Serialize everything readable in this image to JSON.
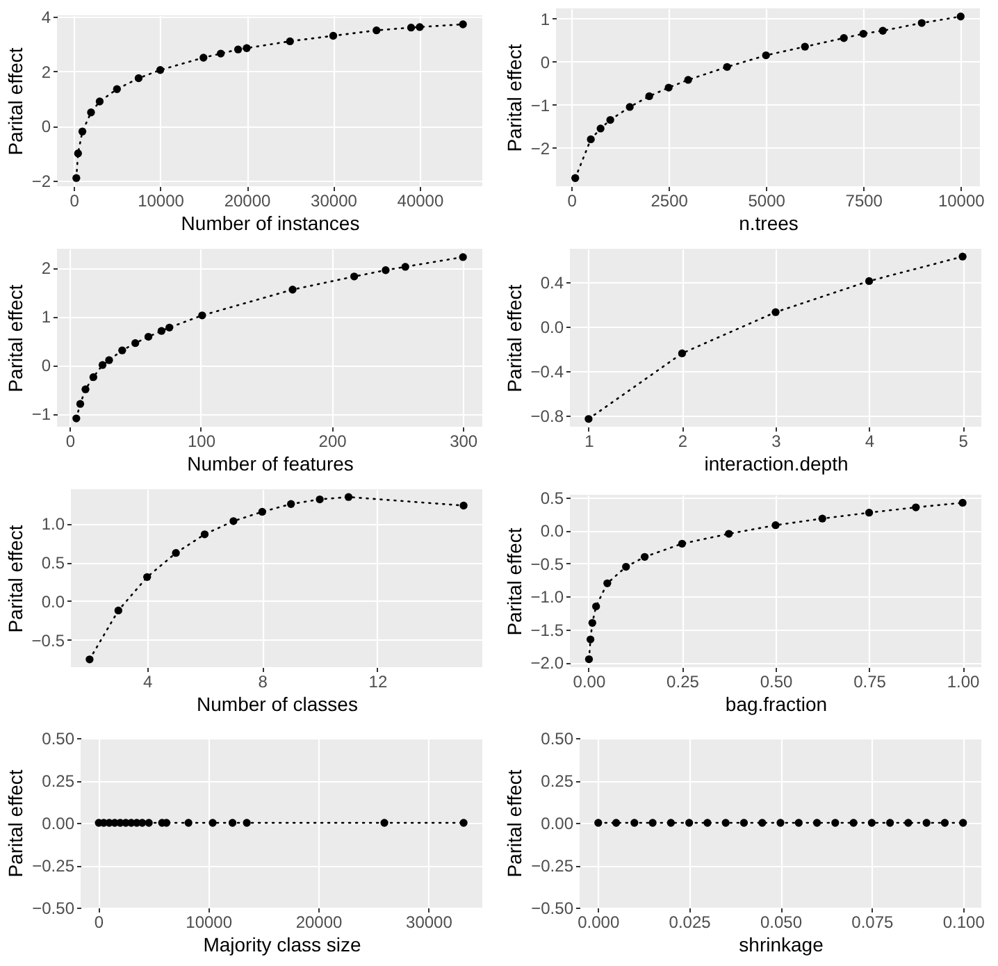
{
  "chart_data": [
    {
      "type": "line",
      "xlabel": "Number of instances",
      "ylabel": "Parital effect",
      "color": "#000000",
      "marker": "circle",
      "line_style": "dotted",
      "grid": true,
      "x": [
        300,
        500,
        1000,
        2000,
        3000,
        5000,
        7500,
        10000,
        15000,
        17000,
        19000,
        20000,
        25000,
        30000,
        35000,
        39000,
        40000,
        45000
      ],
      "values": [
        -1.9,
        -1,
        -0.2,
        0.5,
        0.9,
        1.35,
        1.75,
        2.05,
        2.5,
        2.65,
        2.8,
        2.85,
        3.1,
        3.3,
        3.5,
        3.6,
        3.62,
        3.72
      ],
      "xlim": [
        -1935,
        47235
      ],
      "ylim": [
        -2.2,
        4.05
      ],
      "xticks": [
        0,
        10000,
        20000,
        30000,
        40000
      ],
      "yticks": [
        {
          "value": -2,
          "label": "−2"
        },
        0,
        2,
        4
      ]
    },
    {
      "type": "line",
      "xlabel": "n.trees",
      "ylabel": "Parital effect",
      "color": "#000000",
      "marker": "circle",
      "line_style": "dotted",
      "grid": true,
      "x": [
        100,
        500,
        750,
        1000,
        1500,
        2000,
        2500,
        3000,
        4000,
        5000,
        6000,
        7000,
        7500,
        8000,
        9000,
        10000
      ],
      "values": [
        -2.7,
        -1.8,
        -1.55,
        -1.35,
        -1.05,
        -0.8,
        -0.6,
        -0.42,
        -0.12,
        0.15,
        0.35,
        0.55,
        0.65,
        0.72,
        0.9,
        1.05
      ],
      "xlim": [
        -395,
        10495
      ],
      "ylim": [
        -2.89,
        1.24
      ],
      "xticks": [
        0,
        2500,
        5000,
        7500,
        10000
      ],
      "yticks": [
        {
          "value": -2,
          "label": "−2"
        },
        {
          "value": -1,
          "label": "−1"
        },
        0,
        1
      ]
    },
    {
      "type": "line",
      "xlabel": "Number of features",
      "ylabel": "Parital effect",
      "color": "#000000",
      "marker": "circle",
      "line_style": "dotted",
      "grid": true,
      "x": [
        5,
        8,
        12,
        18,
        25,
        30,
        40,
        50,
        60,
        70,
        76,
        101,
        170,
        217,
        241,
        256,
        300
      ],
      "values": [
        -1.1,
        -0.8,
        -0.5,
        -0.25,
        0,
        0.1,
        0.3,
        0.45,
        0.58,
        0.7,
        0.77,
        1.02,
        1.55,
        1.82,
        1.95,
        2.02,
        2.22
      ],
      "xlim": [
        -9.75,
        314.75
      ],
      "ylim": [
        -1.27,
        2.39
      ],
      "xticks": [
        0,
        100,
        200,
        300
      ],
      "yticks": [
        {
          "value": -1,
          "label": "−1"
        },
        0,
        1,
        2
      ]
    },
    {
      "type": "line",
      "xlabel": "interaction.depth",
      "ylabel": "Parital effect",
      "color": "#000000",
      "marker": "circle",
      "line_style": "dotted",
      "grid": true,
      "x": [
        1,
        2,
        3,
        4,
        5
      ],
      "values": [
        -0.83,
        -0.24,
        0.13,
        0.41,
        0.63
      ],
      "xlim": [
        0.8,
        5.2
      ],
      "ylim": [
        -0.9,
        0.7
      ],
      "xticks": [
        1,
        2,
        3,
        4,
        5
      ],
      "yticks": [
        {
          "value": -0.8,
          "label": "−0.8"
        },
        {
          "value": -0.4,
          "label": "−0.4"
        },
        {
          "value": 0,
          "label": "0.0"
        },
        0.4
      ]
    },
    {
      "type": "line",
      "xlabel": "Number of classes",
      "ylabel": "Parital effect",
      "color": "#000000",
      "marker": "circle",
      "line_style": "dotted",
      "grid": true,
      "x": [
        2,
        3,
        4,
        5,
        6,
        7,
        8,
        9,
        10,
        11,
        15
      ],
      "values": [
        -0.75,
        -0.12,
        0.31,
        0.62,
        0.86,
        1.03,
        1.15,
        1.25,
        1.31,
        1.34,
        1.23
      ],
      "xlim": [
        1.35,
        15.65
      ],
      "ylim": [
        -0.85,
        1.44
      ],
      "xticks": [
        4,
        8,
        12
      ],
      "yticks": [
        {
          "value": -0.5,
          "label": "−0.5"
        },
        {
          "value": 0,
          "label": "0.0"
        },
        0.5,
        {
          "value": 1,
          "label": "1.0"
        }
      ]
    },
    {
      "type": "line",
      "xlabel": "bag.fraction",
      "ylabel": "Parital effect",
      "color": "#000000",
      "marker": "circle",
      "line_style": "dotted",
      "grid": true,
      "x": [
        0.001,
        0.005,
        0.01,
        0.02,
        0.05,
        0.1,
        0.15,
        0.25,
        0.375,
        0.5,
        0.625,
        0.75,
        0.875,
        1
      ],
      "values": [
        -1.95,
        -1.65,
        -1.4,
        -1.15,
        -0.8,
        -0.55,
        -0.4,
        -0.2,
        -0.05,
        0.08,
        0.18,
        0.27,
        0.35,
        0.42
      ],
      "xlim": [
        -0.05,
        1.05
      ],
      "ylim": [
        -2.07,
        0.54
      ],
      "xticks": [
        {
          "value": 0,
          "label": "0.00"
        },
        0.25,
        {
          "value": 0.5,
          "label": "0.50"
        },
        0.75,
        {
          "value": 1,
          "label": "1.00"
        }
      ],
      "yticks": [
        {
          "value": -2,
          "label": "−2.0"
        },
        {
          "value": -1.5,
          "label": "−1.5"
        },
        {
          "value": -1,
          "label": "−1.0"
        },
        {
          "value": -0.5,
          "label": "−0.5"
        },
        {
          "value": 0,
          "label": "0.0"
        },
        0.5
      ]
    },
    {
      "type": "line",
      "xlabel": "Majority class size",
      "ylabel": "Parital effect",
      "color": "#000000",
      "marker": "circle",
      "line_style": "dotted",
      "grid": true,
      "x": [
        50,
        500,
        1000,
        1500,
        2000,
        2500,
        3000,
        3500,
        4000,
        4600,
        5800,
        6200,
        8200,
        10400,
        12200,
        13500,
        26000,
        33200
      ],
      "values": [
        0,
        0,
        0,
        0,
        0,
        0,
        0,
        0,
        0,
        0,
        0,
        0,
        0,
        0,
        0,
        0,
        0,
        0
      ],
      "xlim": [
        -1600,
        34900
      ],
      "ylim": [
        -0.5,
        0.5
      ],
      "xticks": [
        0,
        10000,
        20000,
        30000
      ],
      "yticks": [
        {
          "value": -0.5,
          "label": "−0.50"
        },
        {
          "value": -0.25,
          "label": "−0.25"
        },
        {
          "value": 0,
          "label": "0.00"
        },
        0.25,
        {
          "value": 0.5,
          "label": "0.50"
        }
      ]
    },
    {
      "type": "line",
      "xlabel": "shrinkage",
      "ylabel": "Parital effect",
      "color": "#000000",
      "marker": "circle",
      "line_style": "dotted",
      "grid": true,
      "x": [
        0.0001,
        0.005,
        0.01,
        0.015,
        0.02,
        0.025,
        0.03,
        0.035,
        0.04,
        0.045,
        0.05,
        0.055,
        0.06,
        0.065,
        0.07,
        0.075,
        0.08,
        0.085,
        0.09,
        0.095,
        0.1
      ],
      "values": [
        0,
        0,
        0,
        0,
        0,
        0,
        0,
        0,
        0,
        0,
        0,
        0,
        0,
        0,
        0,
        0,
        0,
        0,
        0,
        0,
        0
      ],
      "xlim": [
        -0.005,
        0.105
      ],
      "ylim": [
        -0.5,
        0.5
      ],
      "xticks": [
        {
          "value": 0,
          "label": "0.000"
        },
        0.025,
        {
          "value": 0.05,
          "label": "0.050"
        },
        0.075,
        {
          "value": 0.1,
          "label": "0.100"
        }
      ],
      "yticks": [
        {
          "value": -0.5,
          "label": "−0.50"
        },
        {
          "value": -0.25,
          "label": "−0.25"
        },
        {
          "value": 0,
          "label": "0.00"
        },
        0.25,
        {
          "value": 0.5,
          "label": "0.50"
        }
      ]
    }
  ]
}
